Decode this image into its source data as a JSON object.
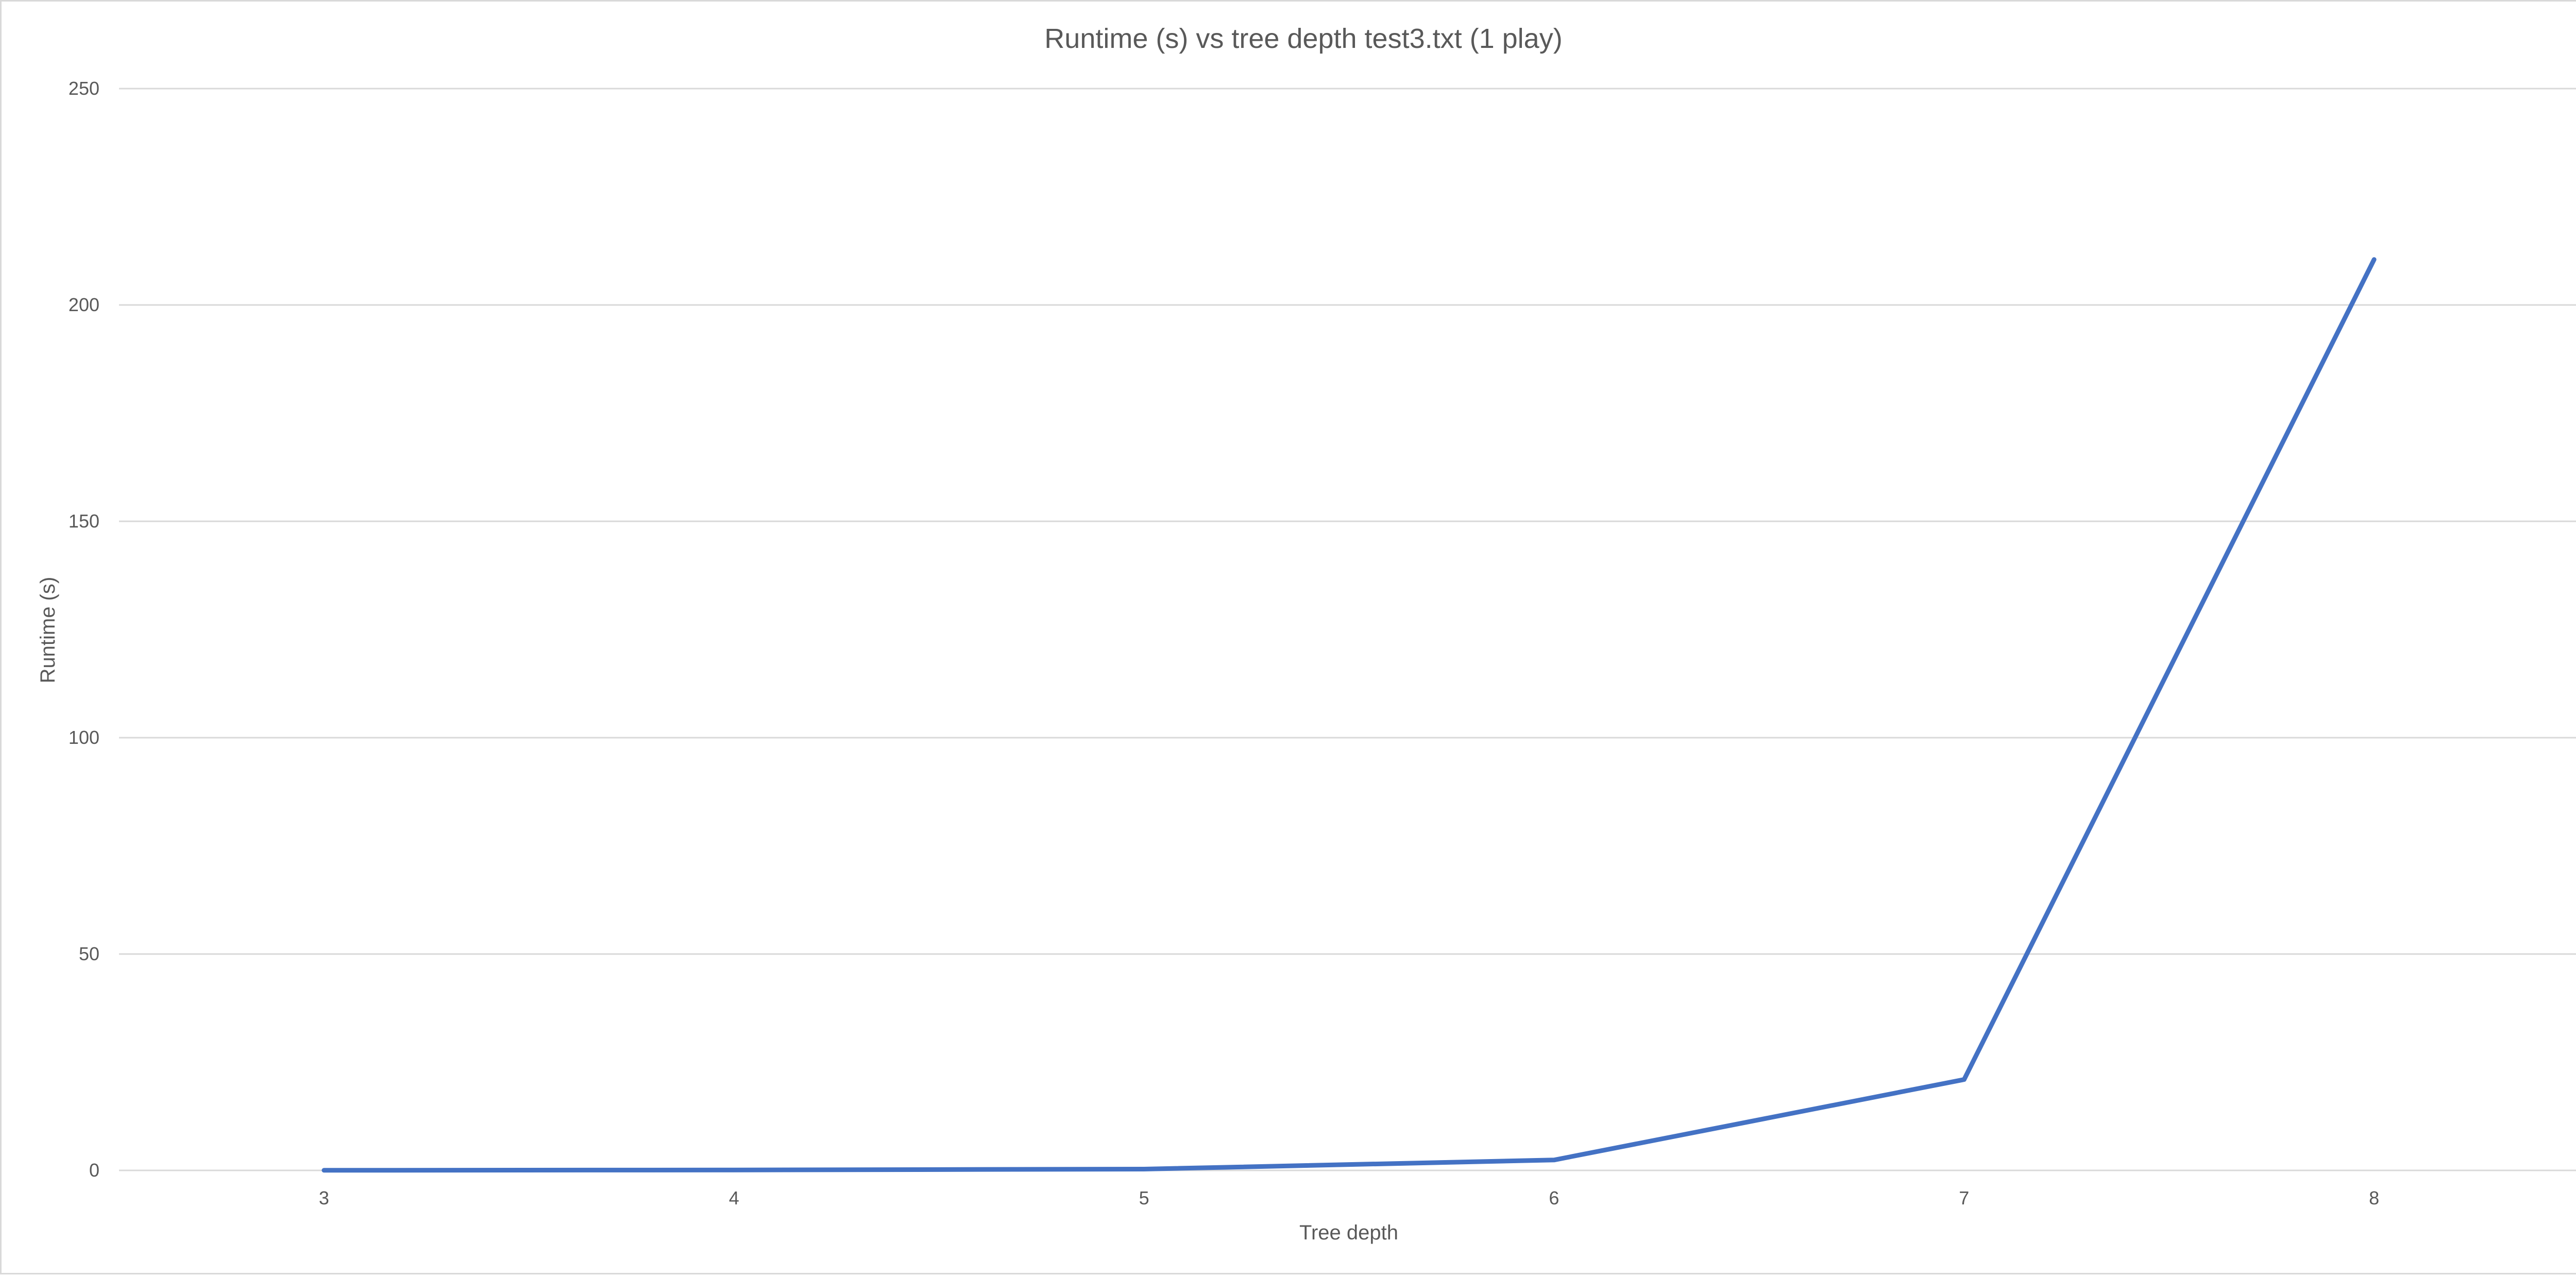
{
  "chart_data": {
    "type": "line",
    "title": "Runtime (s) vs tree depth test3.txt (1 play)",
    "xlabel": "Tree depth",
    "ylabel": "Runtime (s)",
    "categories": [
      "3",
      "4",
      "5",
      "6",
      "7",
      "8"
    ],
    "series": [
      {
        "values": [
          0.02,
          0.1,
          0.3,
          2.4,
          21,
          210.5
        ],
        "color": "#4472C4"
      }
    ],
    "ylim": [
      0,
      250
    ],
    "yticks": [
      0,
      50,
      100,
      150,
      200,
      250
    ],
    "grid": true,
    "legend": "none"
  }
}
